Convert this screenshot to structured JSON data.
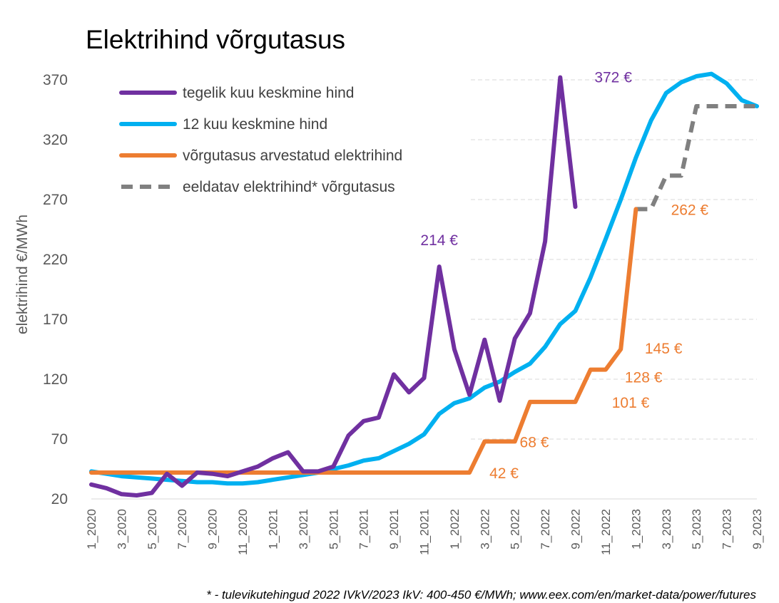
{
  "chart_data": {
    "type": "line",
    "title": "Elektrihind võrgutasus",
    "ylabel": "elektrihind €/MWh",
    "xlabel": "",
    "ylim": [
      20,
      370
    ],
    "yticks": [
      20,
      70,
      120,
      170,
      220,
      270,
      320,
      370
    ],
    "x": [
      "1_2020",
      "2_2020",
      "3_2020",
      "4_2020",
      "5_2020",
      "6_2020",
      "7_2020",
      "8_2020",
      "9_2020",
      "10_2020",
      "11_2020",
      "12_2020",
      "1_2021",
      "2_2021",
      "3_2021",
      "4_2021",
      "5_2021",
      "6_2021",
      "7_2021",
      "8_2021",
      "9_2021",
      "10_2021",
      "11_2021",
      "12_2021",
      "1_2022",
      "2_2022",
      "3_2022",
      "4_2022",
      "5_2022",
      "6_2022",
      "7_2022",
      "8_2022",
      "9_2022",
      "10_2022",
      "11_2022",
      "12_2022",
      "1_2023",
      "2_2023",
      "3_2023",
      "4_2023",
      "5_2023",
      "6_2023",
      "7_2023",
      "8_2023",
      "9_2023"
    ],
    "xtick_labels": [
      "1_2020",
      "3_2020",
      "5_2020",
      "7_2020",
      "9_2020",
      "11_2020",
      "1_2021",
      "3_2021",
      "5_2021",
      "7_2021",
      "9_2021",
      "11_2021",
      "1_2022",
      "3_2022",
      "5_2022",
      "7_2022",
      "9_2022",
      "11_2022",
      "1_2023",
      "3_2023",
      "5_2023",
      "7_2023",
      "9_2023"
    ],
    "grid": "horizontal dashed",
    "legend": "top-left",
    "series": [
      {
        "name": "tegelik kuu keskmine hind",
        "color": "#7030a0",
        "style": "solid",
        "values": [
          32,
          29,
          24,
          23,
          25,
          41,
          31,
          42,
          41,
          39,
          43,
          47,
          54,
          59,
          43,
          43,
          47,
          73,
          85,
          88,
          124,
          109,
          121,
          214,
          145,
          107,
          153,
          102,
          154,
          175,
          235,
          372,
          264,
          null,
          null,
          null,
          null,
          null,
          null,
          null,
          null,
          null,
          null,
          null,
          null
        ]
      },
      {
        "name": "12 kuu keskmine hind",
        "color": "#00b0f0",
        "style": "solid",
        "values": [
          43,
          41,
          39,
          38,
          37,
          36,
          35,
          34,
          34,
          33,
          33,
          34,
          36,
          38,
          40,
          42,
          45,
          48,
          52,
          54,
          60,
          66,
          74,
          91,
          100,
          104,
          113,
          118,
          126,
          133,
          147,
          166,
          177,
          205,
          237,
          270,
          305,
          336,
          359,
          368,
          373,
          375,
          367,
          353,
          348
        ]
      },
      {
        "name": "võrgutasus arvestatud elektrihind",
        "color": "#ed7d31",
        "style": "solid",
        "values": [
          42,
          42,
          42,
          42,
          42,
          42,
          42,
          42,
          42,
          42,
          42,
          42,
          42,
          42,
          42,
          42,
          42,
          42,
          42,
          42,
          42,
          42,
          42,
          42,
          42,
          42,
          68,
          68,
          68,
          101,
          101,
          101,
          101,
          128,
          128,
          145,
          262,
          null,
          null,
          null,
          null,
          null,
          null,
          null,
          null
        ]
      },
      {
        "name": "eeldatav elektrihind* võrgutasus",
        "color": "#808080",
        "style": "dashed",
        "values": [
          null,
          null,
          null,
          null,
          null,
          null,
          null,
          null,
          null,
          null,
          null,
          null,
          null,
          null,
          null,
          null,
          null,
          null,
          null,
          null,
          null,
          null,
          null,
          null,
          null,
          null,
          null,
          null,
          null,
          null,
          null,
          null,
          null,
          null,
          null,
          null,
          262,
          262,
          290,
          290,
          348,
          348,
          348,
          348,
          348
        ]
      }
    ],
    "annotations": [
      {
        "text": "372 €",
        "series": 0,
        "x": "8_2022",
        "y": 372
      },
      {
        "text": "214 €",
        "series": 0,
        "x": "12_2021",
        "y": 214
      },
      {
        "text": "42 €",
        "series": 2,
        "x": "2_2022",
        "y": 42
      },
      {
        "text": "68 €",
        "series": 2,
        "x": "4_2022",
        "y": 68
      },
      {
        "text": "101 €",
        "series": 2,
        "x": "10_2022",
        "y": 101
      },
      {
        "text": "128 €",
        "series": 2,
        "x": "12_2022",
        "y": 128
      },
      {
        "text": "145 €",
        "series": 2,
        "x": "12_2022",
        "y": 145
      },
      {
        "text": "262 €",
        "series": 2,
        "x": "2_2023",
        "y": 262
      }
    ]
  },
  "footnote": "* - tulevikutehingud 2022 IVkV/2023 IkV: 400-450 €/MWh; www.eex.com/en/market-data/power/futures"
}
